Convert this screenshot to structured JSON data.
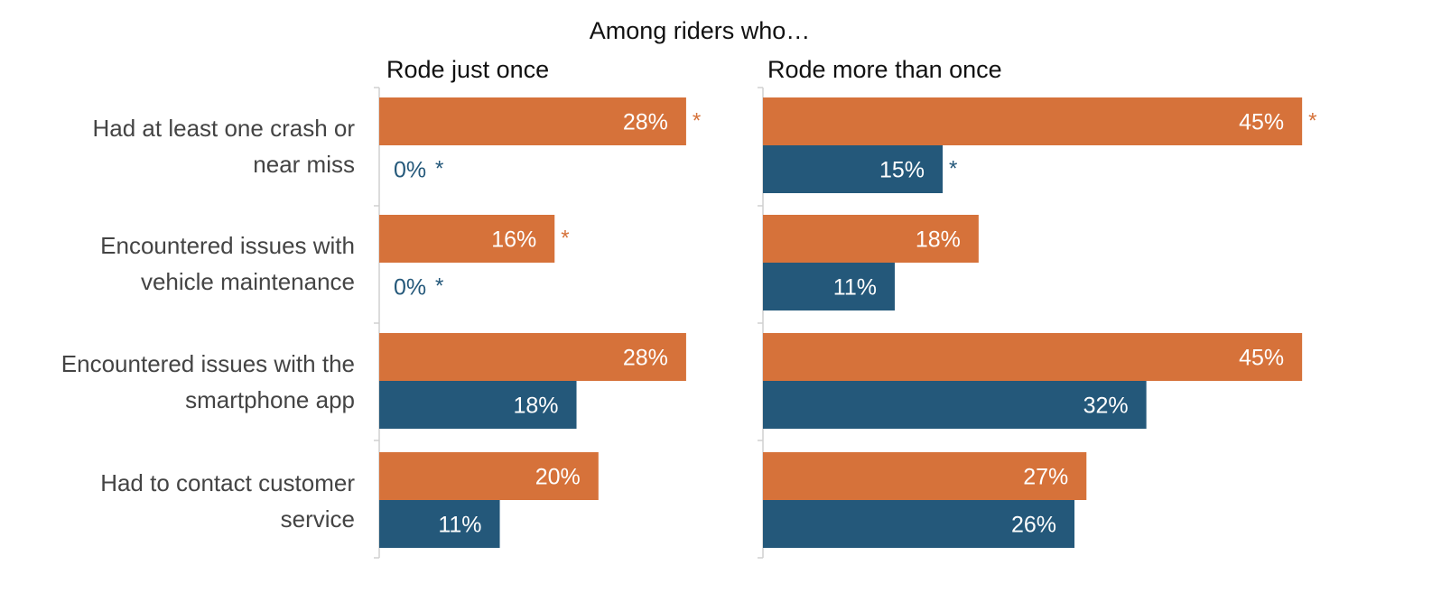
{
  "chart_data": {
    "type": "bar",
    "orientation": "horizontal",
    "title": "Among riders who…",
    "categories": [
      [
        "Had at least one crash or",
        "near miss"
      ],
      [
        "Encountered issues with",
        "vehicle maintenance"
      ],
      [
        "Encountered issues with the",
        "smartphone app"
      ],
      [
        "Had to contact customer",
        "service"
      ]
    ],
    "series_colors": {
      "s1": "#D6723A",
      "s2": "#24587A"
    },
    "panels": [
      {
        "title": "Rode just once",
        "series": [
          {
            "id": "s1",
            "values": [
              28,
              16,
              28,
              20
            ],
            "labels": [
              "28%",
              "16%",
              "28%",
              "20%"
            ],
            "significant": [
              true,
              true,
              false,
              false
            ]
          },
          {
            "id": "s2",
            "values": [
              0,
              0,
              18,
              11
            ],
            "labels": [
              "0%",
              "0%",
              "18%",
              "11%"
            ],
            "significant": [
              true,
              true,
              false,
              false
            ]
          }
        ]
      },
      {
        "title": "Rode more than once",
        "series": [
          {
            "id": "s1",
            "values": [
              45,
              18,
              45,
              27
            ],
            "labels": [
              "45%",
              "18%",
              "45%",
              "27%"
            ],
            "significant": [
              true,
              false,
              false,
              false
            ]
          },
          {
            "id": "s2",
            "values": [
              15,
              11,
              32,
              26
            ],
            "labels": [
              "15%",
              "11%",
              "32%",
              "26%"
            ],
            "significant": [
              true,
              false,
              false,
              false
            ]
          }
        ]
      }
    ],
    "significance_marker": "*",
    "xlabel": "",
    "ylabel": "",
    "grid": false
  }
}
